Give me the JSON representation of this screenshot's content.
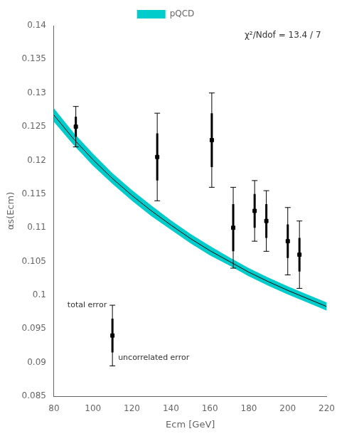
{
  "chart_data": {
    "type": "scatter",
    "xlabel": "Ecm [GeV]",
    "ylabel": "αs(Ecm)",
    "xlim": [
      80,
      220
    ],
    "ylim": [
      0.085,
      0.14
    ],
    "xticks": [
      80,
      100,
      120,
      140,
      160,
      180,
      200,
      220
    ],
    "yticks": [
      0.085,
      0.09,
      0.095,
      0.1,
      0.105,
      0.11,
      0.115,
      0.12,
      0.125,
      0.13,
      0.135,
      0.14
    ],
    "grid": false,
    "legend": "top",
    "series": [
      {
        "name": "pQCD",
        "type": "band",
        "color": "#00CCCC",
        "x": [
          80,
          90,
          100,
          110,
          120,
          130,
          140,
          150,
          160,
          170,
          180,
          190,
          200,
          210,
          220
        ],
        "lower": [
          0.1257,
          0.1223,
          0.1192,
          0.1165,
          0.114,
          0.1117,
          0.1097,
          0.1077,
          0.1059,
          0.1044,
          0.1028,
          0.1014,
          0.1001,
          0.0989,
          0.0977
        ],
        "upper": [
          0.1277,
          0.1241,
          0.121,
          0.1181,
          0.1156,
          0.1133,
          0.1111,
          0.1091,
          0.1073,
          0.1056,
          0.104,
          0.1026,
          0.1013,
          0.1001,
          0.0989
        ]
      },
      {
        "type": "line",
        "color": "#000000",
        "x": [
          80,
          90,
          100,
          110,
          120,
          130,
          140,
          150,
          160,
          170,
          180,
          190,
          200,
          210,
          220
        ],
        "values": [
          0.1267,
          0.1232,
          0.1201,
          0.1173,
          0.1148,
          0.1125,
          0.1104,
          0.1084,
          0.1066,
          0.105,
          0.1034,
          0.102,
          0.1007,
          0.0995,
          0.0983
        ]
      },
      {
        "type": "scatter",
        "color": "#000000",
        "marker": "square",
        "x": [
          91.2,
          133.0,
          161.0,
          172.0,
          183.0,
          189.0,
          200.0,
          206.0
        ],
        "values": [
          0.125,
          0.1205,
          0.123,
          0.11,
          0.1125,
          0.111,
          0.108,
          0.106
        ],
        "err_tot": [
          0.003,
          0.0065,
          0.007,
          0.006,
          0.0045,
          0.0045,
          0.005,
          0.005
        ],
        "err_unc": [
          0.0015,
          0.0035,
          0.004,
          0.0035,
          0.0025,
          0.0025,
          0.0025,
          0.0025
        ]
      },
      {
        "type": "scatter",
        "color": "#000000",
        "marker": "square",
        "x": [
          110
        ],
        "values": [
          0.094
        ],
        "err_tot": [
          0.0045
        ],
        "err_unc": [
          0.0025
        ]
      }
    ],
    "annotations": [
      "total error",
      "uncorrelated error",
      "χ²/Ndof = 13.4 / 7"
    ]
  }
}
